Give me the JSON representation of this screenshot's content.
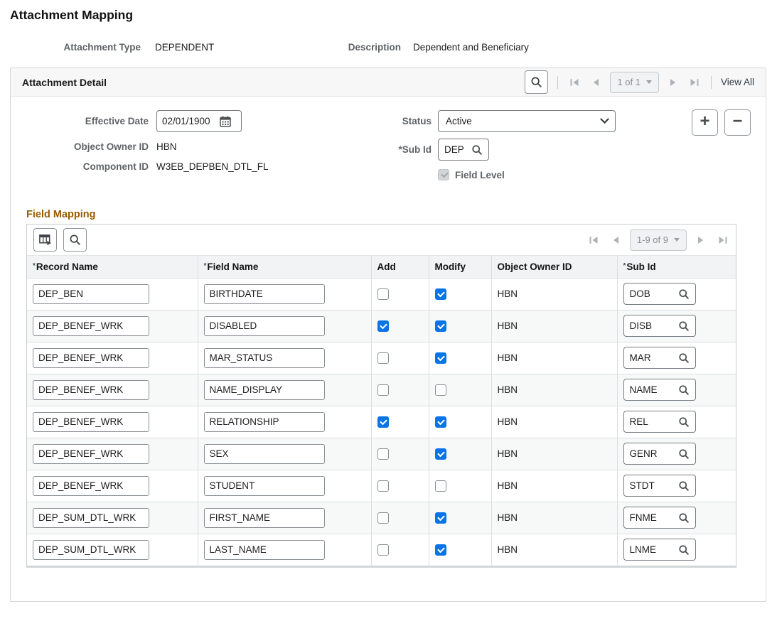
{
  "title": "Attachment Mapping",
  "summary": {
    "attachment_type_label": "Attachment Type",
    "attachment_type_value": "DEPENDENT",
    "description_label": "Description",
    "description_value": "Dependent and Beneficiary"
  },
  "detail": {
    "title": "Attachment Detail",
    "pagination": {
      "page_text": "1 of 1",
      "view_all_label": "View All"
    },
    "effective_date_label": "Effective Date",
    "effective_date_value": "02/01/1900",
    "status_label": "Status",
    "status_value": "Active",
    "object_owner_label": "Object Owner ID",
    "object_owner_value": "HBN",
    "sub_id_label": "*Sub Id",
    "sub_id_value": "DEP",
    "component_id_label": "Component ID",
    "component_id_value": "W3EB_DEPBEN_DTL_FL",
    "field_level_label": "Field Level",
    "field_level_checked": true
  },
  "field_mapping": {
    "title": "Field Mapping",
    "pagination": {
      "page_text": "1-9 of 9"
    },
    "columns": [
      {
        "label": "Record Name",
        "required": true
      },
      {
        "label": "Field Name",
        "required": true
      },
      {
        "label": "Add",
        "required": false
      },
      {
        "label": "Modify",
        "required": false
      },
      {
        "label": "Object Owner ID",
        "required": false
      },
      {
        "label": "Sub Id",
        "required": true
      }
    ],
    "rows": [
      {
        "record_name": "DEP_BEN",
        "field_name": "BIRTHDATE",
        "add": false,
        "modify": true,
        "object_owner": "HBN",
        "sub_id": "DOB"
      },
      {
        "record_name": "DEP_BENEF_WRK",
        "field_name": "DISABLED",
        "add": true,
        "modify": true,
        "object_owner": "HBN",
        "sub_id": "DISB"
      },
      {
        "record_name": "DEP_BENEF_WRK",
        "field_name": "MAR_STATUS",
        "add": false,
        "modify": true,
        "object_owner": "HBN",
        "sub_id": "MAR"
      },
      {
        "record_name": "DEP_BENEF_WRK",
        "field_name": "NAME_DISPLAY",
        "add": false,
        "modify": false,
        "object_owner": "HBN",
        "sub_id": "NAME"
      },
      {
        "record_name": "DEP_BENEF_WRK",
        "field_name": "RELATIONSHIP",
        "add": true,
        "modify": true,
        "object_owner": "HBN",
        "sub_id": "REL"
      },
      {
        "record_name": "DEP_BENEF_WRK",
        "field_name": "SEX",
        "add": false,
        "modify": true,
        "object_owner": "HBN",
        "sub_id": "GENR"
      },
      {
        "record_name": "DEP_BENEF_WRK",
        "field_name": "STUDENT",
        "add": false,
        "modify": false,
        "object_owner": "HBN",
        "sub_id": "STDT"
      },
      {
        "record_name": "DEP_SUM_DTL_WRK",
        "field_name": "FIRST_NAME",
        "add": false,
        "modify": true,
        "object_owner": "HBN",
        "sub_id": "FNME"
      },
      {
        "record_name": "DEP_SUM_DTL_WRK",
        "field_name": "LAST_NAME",
        "add": false,
        "modify": true,
        "object_owner": "HBN",
        "sub_id": "LNME"
      }
    ]
  },
  "colors": {
    "checkbox_accent": "#0b74e4",
    "section_heading": "#9a5b00",
    "label_grey": "#5f6266"
  }
}
